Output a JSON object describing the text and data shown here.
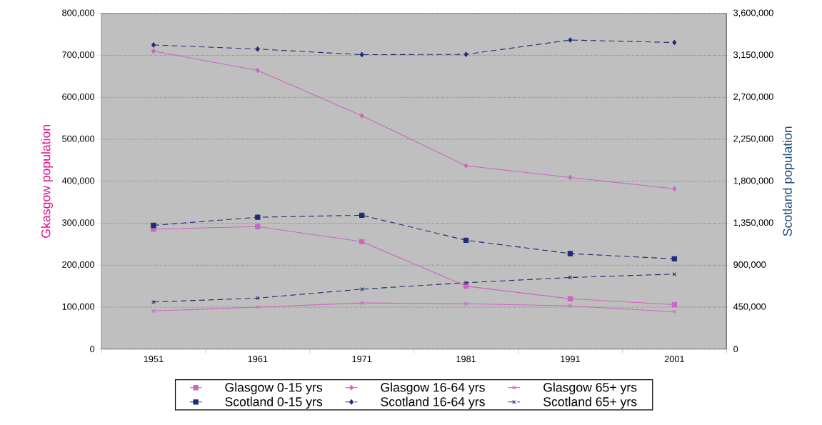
{
  "chart_data": {
    "type": "line",
    "ylabel": "Gkasgow population",
    "y2label": "Scotland population",
    "categories": [
      "1951",
      "1961",
      "1971",
      "1981",
      "1991",
      "2001"
    ],
    "series": [
      {
        "name": "Glasgow 0-15 yrs",
        "color": "#cc66c4",
        "marker": "square",
        "line_style": "solid",
        "values": [
          286000,
          292000,
          256000,
          150000,
          120000,
          106000
        ]
      },
      {
        "name": "Glasgow 16-64 yrs",
        "color": "#cc66c4",
        "marker": "diamond",
        "line_style": "solid",
        "values": [
          710000,
          664000,
          556000,
          437000,
          409000,
          382000
        ]
      },
      {
        "name": "Glasgow 65+ yrs",
        "color": "#cc66c4",
        "marker": "cross",
        "line_style": "solid",
        "values": [
          91000,
          100000,
          110000,
          108000,
          103000,
          89000
        ]
      },
      {
        "name": "Scotland 0-15 yrs",
        "color": "#1f2a78",
        "marker": "square",
        "line_style": "dashed",
        "axis": "y2",
        "values": [
          1327000,
          1414000,
          1435000,
          1167000,
          1024000,
          968000
        ]
      },
      {
        "name": "Scotland 16-64 yrs",
        "color": "#1f2a78",
        "marker": "diamond",
        "line_style": "dashed",
        "axis": "y2",
        "values": [
          3261000,
          3217000,
          3157000,
          3160000,
          3314000,
          3287000
        ]
      },
      {
        "name": "Scotland 65+ yrs",
        "color": "#1f2a78",
        "marker": "cross",
        "line_style": "dashed",
        "axis": "y2",
        "values": [
          505000,
          547000,
          643000,
          712000,
          768000,
          804000
        ]
      }
    ],
    "ylim": [
      0,
      800000
    ],
    "yticks": [
      {
        "value": 0,
        "label": "0"
      },
      {
        "value": 100000,
        "label": "100,000"
      },
      {
        "value": 200000,
        "label": "200,000"
      },
      {
        "value": 300000,
        "label": "300,000"
      },
      {
        "value": 400000,
        "label": "400,000"
      },
      {
        "value": 500000,
        "label": "500,000"
      },
      {
        "value": 600000,
        "label": "600,000"
      },
      {
        "value": 700000,
        "label": "700,000"
      },
      {
        "value": 800000,
        "label": "800,000"
      }
    ],
    "y2lim": [
      0,
      3600000
    ],
    "y2ticks": [
      {
        "value": 0,
        "label": "0"
      },
      {
        "value": 450000,
        "label": "450,000"
      },
      {
        "value": 900000,
        "label": "900,000"
      },
      {
        "value": 1350000,
        "label": "1,350,000"
      },
      {
        "value": 1800000,
        "label": "1,800,000"
      },
      {
        "value": 2250000,
        "label": "2,250,000"
      },
      {
        "value": 2700000,
        "label": "2,700,000"
      },
      {
        "value": 3150000,
        "label": "3,150,000"
      },
      {
        "value": 3600000,
        "label": "3,600,000"
      }
    ],
    "grid": "y",
    "legend": "bottom"
  }
}
